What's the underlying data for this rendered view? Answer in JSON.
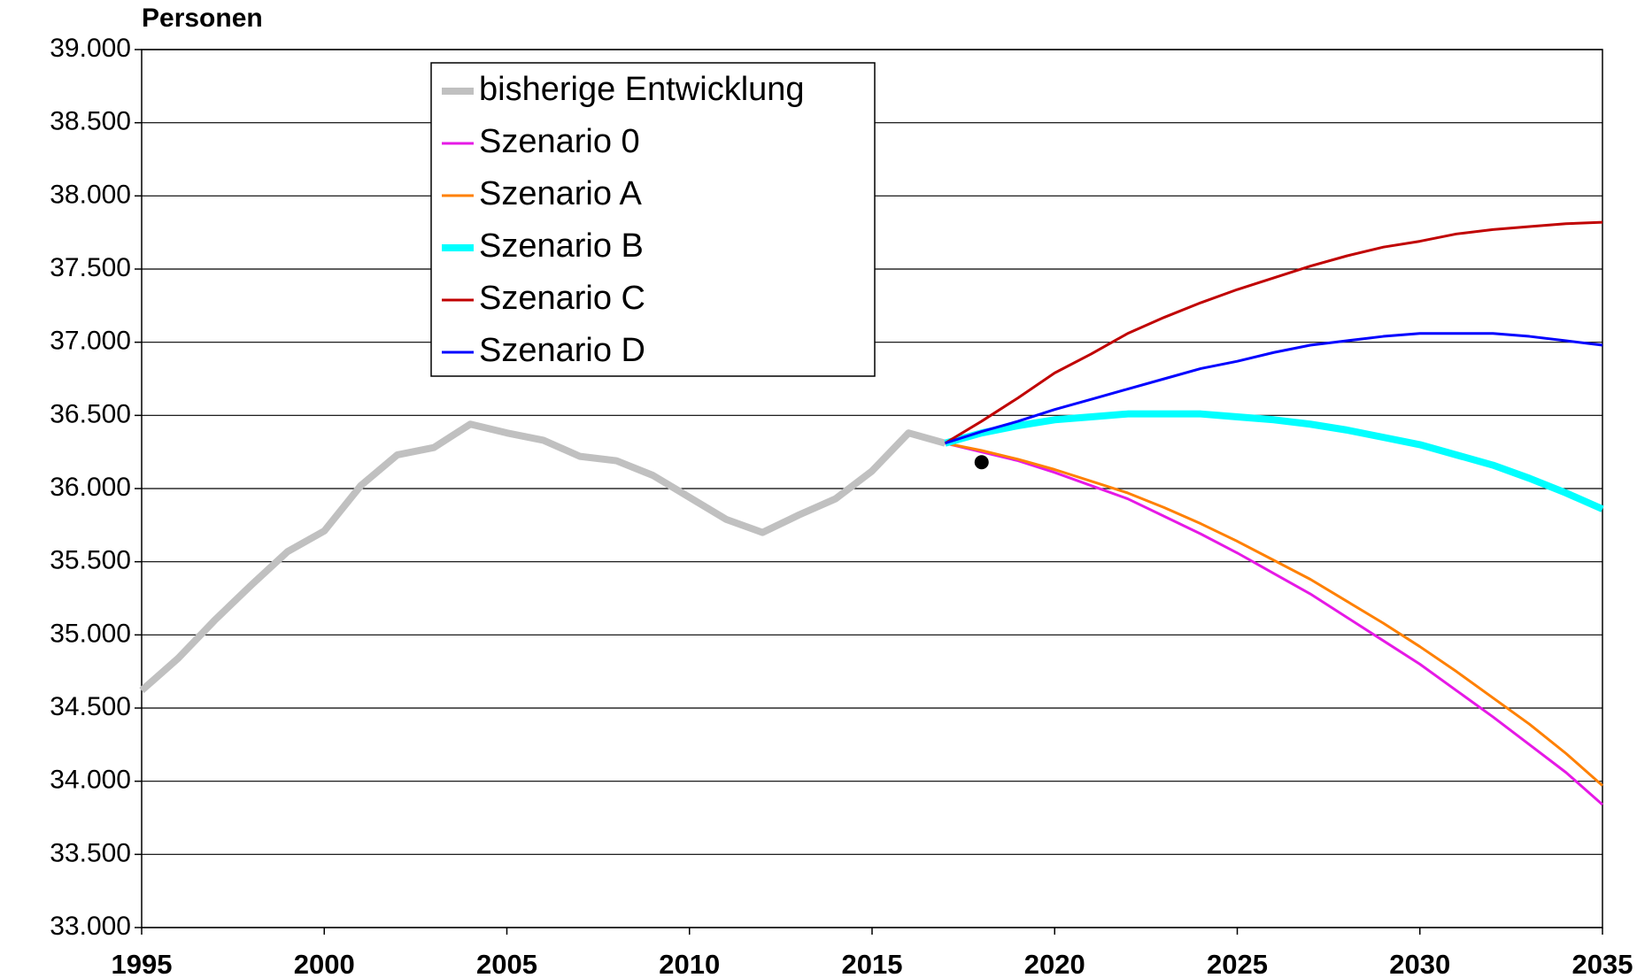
{
  "chart_data": {
    "type": "line",
    "ylabel": "Personen",
    "x": [
      1995,
      1996,
      1997,
      1998,
      1999,
      2000,
      2001,
      2002,
      2003,
      2004,
      2005,
      2006,
      2007,
      2008,
      2009,
      2010,
      2011,
      2012,
      2013,
      2014,
      2015,
      2016,
      2017,
      2018,
      2019,
      2020,
      2021,
      2022,
      2023,
      2024,
      2025,
      2026,
      2027,
      2028,
      2029,
      2030,
      2031,
      2032,
      2033,
      2034,
      2035
    ],
    "xlim": [
      1995,
      2035
    ],
    "xticks": [
      1995,
      2000,
      2005,
      2010,
      2015,
      2020,
      2025,
      2030,
      2035
    ],
    "ylim": [
      33000,
      39000
    ],
    "yticks": [
      {
        "value": 33000,
        "label": "33.000"
      },
      {
        "value": 33500,
        "label": "33.500"
      },
      {
        "value": 34000,
        "label": "34.000"
      },
      {
        "value": 34500,
        "label": "34.500"
      },
      {
        "value": 35000,
        "label": "35.000"
      },
      {
        "value": 35500,
        "label": "35.500"
      },
      {
        "value": 36000,
        "label": "36.000"
      },
      {
        "value": 36500,
        "label": "36.500"
      },
      {
        "value": 37000,
        "label": "37.000"
      },
      {
        "value": 37500,
        "label": "37.500"
      },
      {
        "value": 38000,
        "label": "38.000"
      },
      {
        "value": 38500,
        "label": "38.500"
      },
      {
        "value": 39000,
        "label": "39.000"
      }
    ],
    "grid": true,
    "series": [
      {
        "name": "bisherige Entwicklung",
        "color": "#c0c0c0",
        "width": 8,
        "values": [
          34620,
          34840,
          35100,
          35340,
          35570,
          35710,
          36020,
          36230,
          36280,
          36440,
          36380,
          36330,
          36220,
          36190,
          36090,
          35940,
          35790,
          35700,
          35820,
          35930,
          36120,
          36380,
          36310,
          null,
          null,
          null,
          null,
          null,
          null,
          null,
          null,
          null,
          null,
          null,
          null,
          null,
          null,
          null,
          null,
          null,
          null
        ]
      },
      {
        "name": "Szenario 0",
        "color": "#e619e6",
        "width": 3,
        "values": [
          null,
          null,
          null,
          null,
          null,
          null,
          null,
          null,
          null,
          null,
          null,
          null,
          null,
          null,
          null,
          null,
          null,
          null,
          null,
          null,
          null,
          null,
          36310,
          36250,
          36190,
          36110,
          36020,
          35930,
          35810,
          35690,
          35560,
          35420,
          35280,
          35120,
          34960,
          34800,
          34620,
          34440,
          34250,
          34060,
          33840
        ]
      },
      {
        "name": "Szenario A",
        "color": "#ff8000",
        "width": 3,
        "values": [
          null,
          null,
          null,
          null,
          null,
          null,
          null,
          null,
          null,
          null,
          null,
          null,
          null,
          null,
          null,
          null,
          null,
          null,
          null,
          null,
          null,
          null,
          36310,
          36260,
          36200,
          36130,
          36050,
          35970,
          35870,
          35760,
          35640,
          35510,
          35380,
          35230,
          35080,
          34920,
          34750,
          34570,
          34390,
          34190,
          33970
        ]
      },
      {
        "name": "Szenario B",
        "color": "#00ffff",
        "width": 8,
        "values": [
          null,
          null,
          null,
          null,
          null,
          null,
          null,
          null,
          null,
          null,
          null,
          null,
          null,
          null,
          null,
          null,
          null,
          null,
          null,
          null,
          null,
          null,
          36310,
          36380,
          36430,
          36470,
          36490,
          36510,
          36510,
          36510,
          36490,
          36470,
          36440,
          36400,
          36350,
          36300,
          36230,
          36160,
          36070,
          35970,
          35860
        ]
      },
      {
        "name": "Szenario C",
        "color": "#c00000",
        "width": 3,
        "values": [
          null,
          null,
          null,
          null,
          null,
          null,
          null,
          null,
          null,
          null,
          null,
          null,
          null,
          null,
          null,
          null,
          null,
          null,
          null,
          null,
          null,
          null,
          36310,
          36460,
          36620,
          36790,
          36920,
          37060,
          37170,
          37270,
          37360,
          37440,
          37520,
          37590,
          37650,
          37690,
          37740,
          37770,
          37790,
          37810,
          37820
        ]
      },
      {
        "name": "Szenario D",
        "color": "#0000ff",
        "width": 3,
        "values": [
          null,
          null,
          null,
          null,
          null,
          null,
          null,
          null,
          null,
          null,
          null,
          null,
          null,
          null,
          null,
          null,
          null,
          null,
          null,
          null,
          null,
          null,
          36310,
          36390,
          36460,
          36540,
          36610,
          36680,
          36750,
          36820,
          36870,
          36930,
          36980,
          37010,
          37040,
          37060,
          37060,
          37060,
          37040,
          37010,
          36980
        ]
      }
    ],
    "marker": {
      "x": 2018,
      "value": 36180,
      "color": "#000000"
    },
    "legend": "top-left"
  }
}
